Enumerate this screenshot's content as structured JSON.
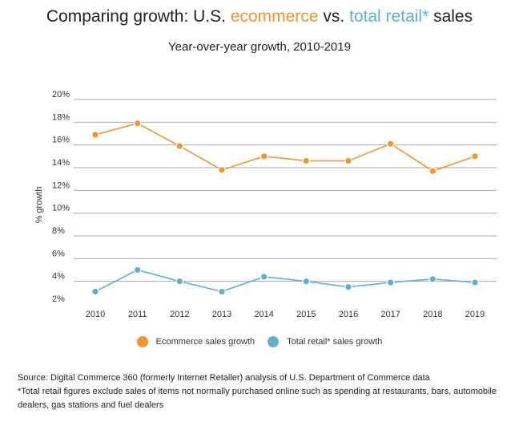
{
  "title": {
    "prefix": "Comparing growth: U.S. ",
    "ecom": "ecommerce",
    "middle": " vs. ",
    "retail": "total retail*",
    "suffix": " sales"
  },
  "subtitle": "Year-over-year growth, 2010-2019",
  "colors": {
    "ecommerce": "#f0962f",
    "retail": "#5fb0cf",
    "grid": "#aaaaaa"
  },
  "chart_data": {
    "type": "line",
    "x": [
      "2010",
      "2011",
      "2012",
      "2013",
      "2014",
      "2015",
      "2016",
      "2017",
      "2018",
      "2019"
    ],
    "ylabel": "% growth",
    "ylim": [
      2,
      20
    ],
    "yticks": [
      2,
      4,
      6,
      8,
      10,
      12,
      14,
      16,
      18,
      20
    ],
    "ytick_labels": [
      "2%",
      "4%",
      "6%",
      "8%",
      "10%",
      "12%",
      "14%",
      "16%",
      "18%",
      "20%"
    ],
    "grid": true,
    "legend": "bottom",
    "series": [
      {
        "name": "Ecommerce sales growth",
        "values": [
          16.9,
          17.9,
          15.9,
          13.8,
          15.0,
          14.6,
          14.6,
          16.1,
          13.7,
          15.0
        ]
      },
      {
        "name": "Total retail* sales growth",
        "values": [
          3.1,
          5.0,
          4.0,
          3.1,
          4.4,
          4.0,
          3.5,
          3.9,
          4.2,
          3.9
        ]
      }
    ]
  },
  "footer": {
    "source": "Source: Digital Commerce 360 (formerly Internet Retailer) analysis of U.S. Department of Commerce data",
    "note": "*Total retail figures exclude sales of items not normally purchased online such as spending at restaurants, bars, automobile dealers, gas stations and fuel dealers"
  }
}
